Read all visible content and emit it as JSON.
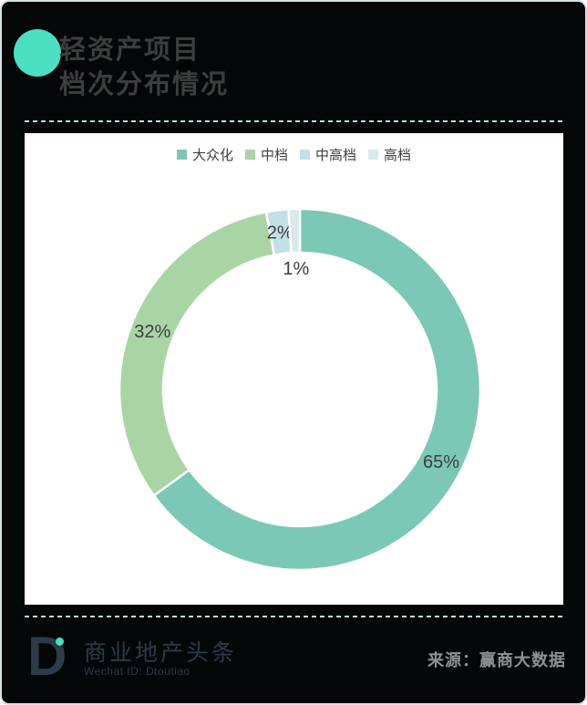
{
  "page": {
    "background": "#030708",
    "border_color": "#cde3e6"
  },
  "header": {
    "title_line1": "轻资产项目",
    "title_line2": "档次分布情况",
    "title_color": "#3d3d3d",
    "accent_circle_color": "#4ce0c3"
  },
  "separator": {
    "color": "#b7e4da",
    "style": "dashed"
  },
  "chart_data": {
    "type": "pie",
    "subtype": "donut",
    "title": "轻资产项目档次分布情况",
    "categories": [
      "大众化",
      "中档",
      "中高档",
      "高档"
    ],
    "values": [
      65,
      32,
      2,
      1
    ],
    "labels": [
      "65%",
      "32%",
      "2%",
      "1%"
    ],
    "unit": "%",
    "colors": [
      "#7bc8b6",
      "#a9d5a4",
      "#c2e1e4",
      "#d9eaec"
    ],
    "slice_border_color": "#ffffff",
    "label_color": "#3d3d3d",
    "legend_position": "top",
    "legend_text_color": "#3f3f3f",
    "start_angle_deg": 0,
    "direction": "clockwise",
    "donut_hole_ratio": 0.76
  },
  "footer": {
    "logo_letter": "D",
    "logo_color": "#2d3a48",
    "logo_dot_color": "#3fe2c1",
    "brand_name": "商业地产头条",
    "brand_color": "#2d3a48",
    "wechat_id": "Wechat ID: Dtoutiao",
    "wechat_color": "#2d3a48",
    "source_label": "来源：赢商大数据",
    "source_color": "#8e9294"
  }
}
